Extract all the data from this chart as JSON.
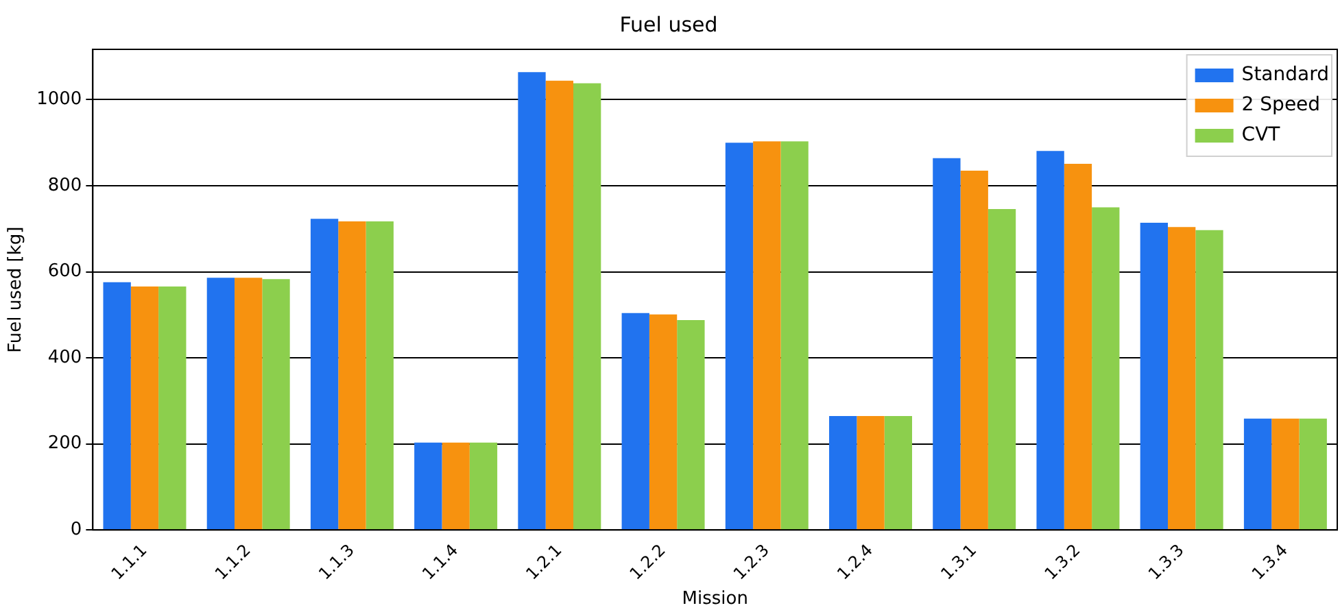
{
  "chart_data": {
    "type": "bar",
    "title": "Fuel used",
    "xlabel": "Mission",
    "ylabel": "Fuel used [kg]",
    "categories": [
      "1.1.1",
      "1.1.2",
      "1.1.3",
      "1.1.4",
      "1.2.1",
      "1.2.2",
      "1.2.3",
      "1.2.4",
      "1.3.1",
      "1.3.2",
      "1.3.3",
      "1.3.4"
    ],
    "series": [
      {
        "name": "Standard",
        "color": "#2173ef",
        "values": [
          576,
          586,
          723,
          203,
          1064,
          504,
          900,
          265,
          864,
          881,
          714,
          259
        ]
      },
      {
        "name": "2 Speed",
        "color": "#f7920f",
        "values": [
          566,
          586,
          717,
          203,
          1044,
          501,
          903,
          265,
          835,
          851,
          704,
          259
        ]
      },
      {
        "name": "CVT",
        "color": "#8ccf4d",
        "values": [
          566,
          583,
          717,
          203,
          1038,
          488,
          903,
          265,
          746,
          750,
          697,
          259
        ]
      }
    ],
    "ylim": [
      0,
      1117
    ],
    "yticks": [
      0,
      200,
      400,
      600,
      800,
      1000
    ],
    "grid": "y",
    "legend": "top right"
  }
}
